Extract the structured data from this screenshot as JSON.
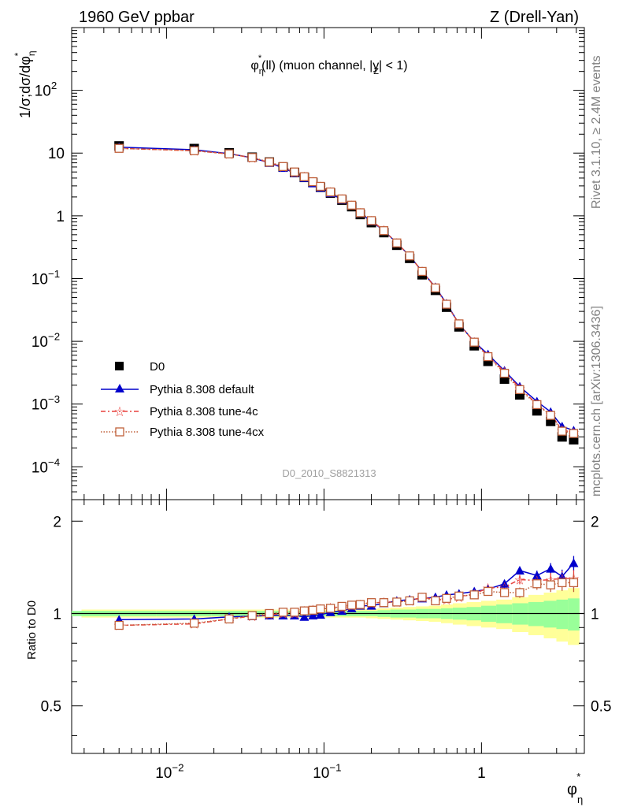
{
  "header": {
    "left": "1960 GeV ppbar",
    "right": "Z (Drell-Yan)"
  },
  "side_text": {
    "rivet": "Rivet 3.1.10, ≥ 2.4M events",
    "mcplots": "mcplots.cern.ch [arXiv:1306.3436]"
  },
  "chart_data": [
    {
      "type": "scatter",
      "title": "φ*η(ll) (muon channel, |yZ| < 1)",
      "ylabel": "1/σ;dσ/dφ*η",
      "xlabel": "φ*η",
      "xscale": "log",
      "yscale": "log",
      "xlim": [
        0.0025,
        4.5
      ],
      "ylim": [
        3e-05,
        1000
      ],
      "x": [
        0.005,
        0.015,
        0.025,
        0.035,
        0.045,
        0.055,
        0.065,
        0.075,
        0.085,
        0.095,
        0.11,
        0.13,
        0.15,
        0.17,
        0.2,
        0.24,
        0.29,
        0.35,
        0.42,
        0.51,
        0.6,
        0.72,
        0.9,
        1.1,
        1.4,
        1.75,
        2.25,
        2.75,
        3.25,
        3.85
      ],
      "watermark": "D0_2010_S8821313",
      "legend_position": "lower-left",
      "series": [
        {
          "name": "D0",
          "color": "#000000",
          "marker": "square",
          "values": [
            13.0,
            11.8,
            10.1,
            8.6,
            7.2,
            6.0,
            4.9,
            4.1,
            3.4,
            2.85,
            2.3,
            1.78,
            1.4,
            1.05,
            0.78,
            0.54,
            0.34,
            0.21,
            0.115,
            0.065,
            0.035,
            0.017,
            0.0085,
            0.0048,
            0.0025,
            0.0014,
            0.00078,
            0.00053,
            0.0003,
            0.00027
          ]
        },
        {
          "name": "Pythia 8.308 default",
          "color": "#0000cc",
          "marker": "triangle",
          "values": [
            12.4,
            11.3,
            9.8,
            8.4,
            7.0,
            5.8,
            4.8,
            4.0,
            3.3,
            2.8,
            2.3,
            1.8,
            1.45,
            1.1,
            0.82,
            0.58,
            0.37,
            0.23,
            0.13,
            0.073,
            0.04,
            0.019,
            0.0098,
            0.0062,
            0.0034,
            0.0019,
            0.0011,
            0.00075,
            0.00044,
            0.00038
          ]
        },
        {
          "name": "Pythia 8.308 tune-4c",
          "color": "#e8413d",
          "marker": "star",
          "values": [
            11.9,
            10.9,
            9.7,
            8.4,
            7.1,
            6.0,
            4.9,
            4.2,
            3.5,
            2.95,
            2.4,
            1.85,
            1.48,
            1.12,
            0.84,
            0.59,
            0.37,
            0.23,
            0.13,
            0.072,
            0.039,
            0.019,
            0.0098,
            0.0058,
            0.0033,
            0.0018,
            0.001,
            0.00068,
            0.00039,
            0.00035
          ]
        },
        {
          "name": "Pythia 8.308 tune-4cx",
          "color": "#c0603a",
          "marker": "open-square",
          "values": [
            11.9,
            10.9,
            9.7,
            8.5,
            7.2,
            6.1,
            5.0,
            4.2,
            3.5,
            2.95,
            2.4,
            1.86,
            1.48,
            1.12,
            0.84,
            0.58,
            0.37,
            0.23,
            0.13,
            0.071,
            0.039,
            0.019,
            0.0097,
            0.0057,
            0.0031,
            0.0017,
            0.00098,
            0.00066,
            0.00037,
            0.00034
          ]
        }
      ],
      "yticks": [
        "10^-4",
        "10^-3",
        "10^-2",
        "10^-1",
        "1",
        "10",
        "10^2"
      ]
    },
    {
      "type": "line",
      "ylabel": "Ratio to D0",
      "xlabel": "φ*η",
      "xscale": "log",
      "ylim": [
        0.35,
        2.35
      ],
      "yticks": [
        "0.5",
        "1",
        "2"
      ],
      "xticks": [
        "10^-2",
        "10^-1",
        "1"
      ],
      "x": [
        0.005,
        0.015,
        0.025,
        0.035,
        0.045,
        0.055,
        0.065,
        0.075,
        0.085,
        0.095,
        0.11,
        0.13,
        0.15,
        0.17,
        0.2,
        0.24,
        0.29,
        0.35,
        0.42,
        0.51,
        0.6,
        0.72,
        0.9,
        1.1,
        1.4,
        1.75,
        2.25,
        2.75,
        3.25,
        3.85
      ],
      "band_green": [
        0.02,
        0.02,
        0.02,
        0.02,
        0.02,
        0.02,
        0.02,
        0.02,
        0.02,
        0.02,
        0.02,
        0.02,
        0.02,
        0.02,
        0.02,
        0.025,
        0.03,
        0.03,
        0.035,
        0.035,
        0.04,
        0.045,
        0.05,
        0.06,
        0.07,
        0.08,
        0.09,
        0.1,
        0.11,
        0.12
      ],
      "band_yellow": [
        0.03,
        0.03,
        0.03,
        0.03,
        0.03,
        0.03,
        0.03,
        0.03,
        0.03,
        0.03,
        0.03,
        0.03,
        0.03,
        0.03,
        0.035,
        0.04,
        0.045,
        0.05,
        0.055,
        0.06,
        0.07,
        0.08,
        0.09,
        0.1,
        0.11,
        0.13,
        0.15,
        0.17,
        0.19,
        0.21
      ],
      "series": [
        {
          "name": "Pythia 8.308 default",
          "color": "#0000cc",
          "marker": "triangle",
          "values": [
            0.955,
            0.96,
            0.975,
            0.98,
            0.985,
            0.985,
            0.985,
            0.975,
            0.985,
            0.99,
            1.01,
            1.02,
            1.04,
            1.06,
            1.06,
            1.08,
            1.1,
            1.11,
            1.12,
            1.13,
            1.15,
            1.16,
            1.18,
            1.2,
            1.25,
            1.38,
            1.33,
            1.4,
            1.32,
            1.46
          ],
          "err": [
            0.005,
            0.005,
            0.005,
            0.005,
            0.005,
            0.005,
            0.005,
            0.005,
            0.005,
            0.005,
            0.005,
            0.005,
            0.005,
            0.005,
            0.005,
            0.005,
            0.006,
            0.006,
            0.008,
            0.01,
            0.012,
            0.015,
            0.02,
            0.025,
            0.03,
            0.04,
            0.05,
            0.06,
            0.07,
            0.08
          ]
        },
        {
          "name": "Pythia 8.308 tune-4c",
          "color": "#e8413d",
          "marker": "star",
          "values": [
            0.915,
            0.925,
            0.96,
            0.98,
            0.99,
            1.0,
            1.0,
            1.02,
            1.03,
            1.035,
            1.045,
            1.04,
            1.06,
            1.07,
            1.08,
            1.09,
            1.09,
            1.1,
            1.13,
            1.11,
            1.11,
            1.13,
            1.16,
            1.21,
            1.22,
            1.29,
            1.28,
            1.29,
            1.3,
            1.3
          ],
          "err": [
            0.005,
            0.005,
            0.005,
            0.005,
            0.005,
            0.005,
            0.005,
            0.005,
            0.005,
            0.005,
            0.005,
            0.005,
            0.005,
            0.005,
            0.006,
            0.006,
            0.007,
            0.008,
            0.01,
            0.012,
            0.015,
            0.02,
            0.025,
            0.03,
            0.035,
            0.045,
            0.055,
            0.065,
            0.075,
            0.085
          ]
        },
        {
          "name": "Pythia 8.308 tune-4cx",
          "color": "#c0603a",
          "marker": "open-square",
          "values": [
            0.915,
            0.93,
            0.96,
            0.985,
            1.0,
            1.01,
            1.01,
            1.02,
            1.025,
            1.035,
            1.04,
            1.055,
            1.065,
            1.07,
            1.085,
            1.085,
            1.09,
            1.1,
            1.13,
            1.1,
            1.12,
            1.14,
            1.15,
            1.18,
            1.17,
            1.17,
            1.25,
            1.24,
            1.26,
            1.26
          ],
          "err": [
            0.005,
            0.005,
            0.005,
            0.005,
            0.005,
            0.005,
            0.005,
            0.005,
            0.005,
            0.005,
            0.005,
            0.005,
            0.005,
            0.005,
            0.006,
            0.006,
            0.007,
            0.008,
            0.01,
            0.012,
            0.015,
            0.02,
            0.025,
            0.03,
            0.035,
            0.045,
            0.055,
            0.065,
            0.075,
            0.085
          ]
        }
      ]
    }
  ]
}
